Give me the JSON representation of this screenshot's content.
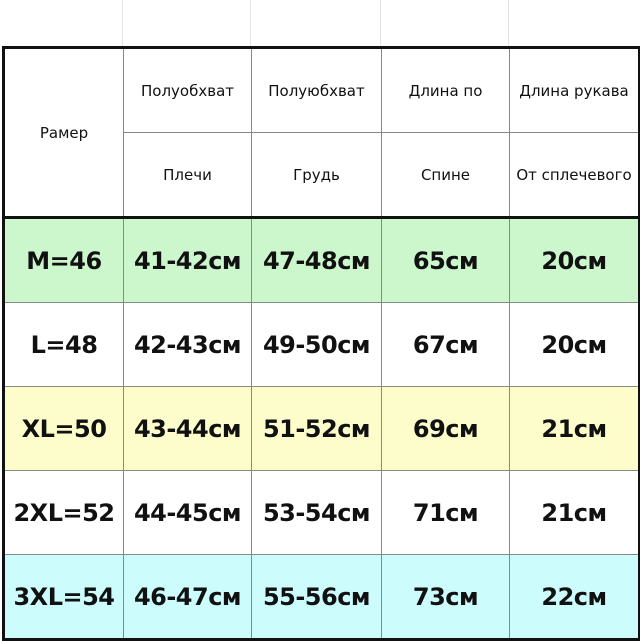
{
  "header": {
    "size_label": "Рамер",
    "columns": [
      {
        "line1": "Полуобхват",
        "line2": "Плечи"
      },
      {
        "line1": "Полуюбхват",
        "line2": "Грудь"
      },
      {
        "line1": "Длина по",
        "line2": "Спине"
      },
      {
        "line1": "Длина рукава",
        "line2": "От сплечевого"
      }
    ]
  },
  "rows": [
    {
      "size": "M=46",
      "cells": [
        "41-42см",
        "47-48см",
        "65см",
        "20см"
      ],
      "color": "#ccf7cc"
    },
    {
      "size": "L=48",
      "cells": [
        "42-43см",
        "49-50см",
        "67см",
        "20см"
      ],
      "color": "#ffffff"
    },
    {
      "size": "XL=50",
      "cells": [
        "43-44см",
        "51-52см",
        "69см",
        "21см"
      ],
      "color": "#fdfdcc"
    },
    {
      "size": "2XL=52",
      "cells": [
        "44-45см",
        "53-54см",
        "71см",
        "21см"
      ],
      "color": "#ffffff"
    },
    {
      "size": "3XL=54",
      "cells": [
        "46-47см",
        "55-56см",
        "73см",
        "22см"
      ],
      "color": "#ccfcfc"
    }
  ]
}
